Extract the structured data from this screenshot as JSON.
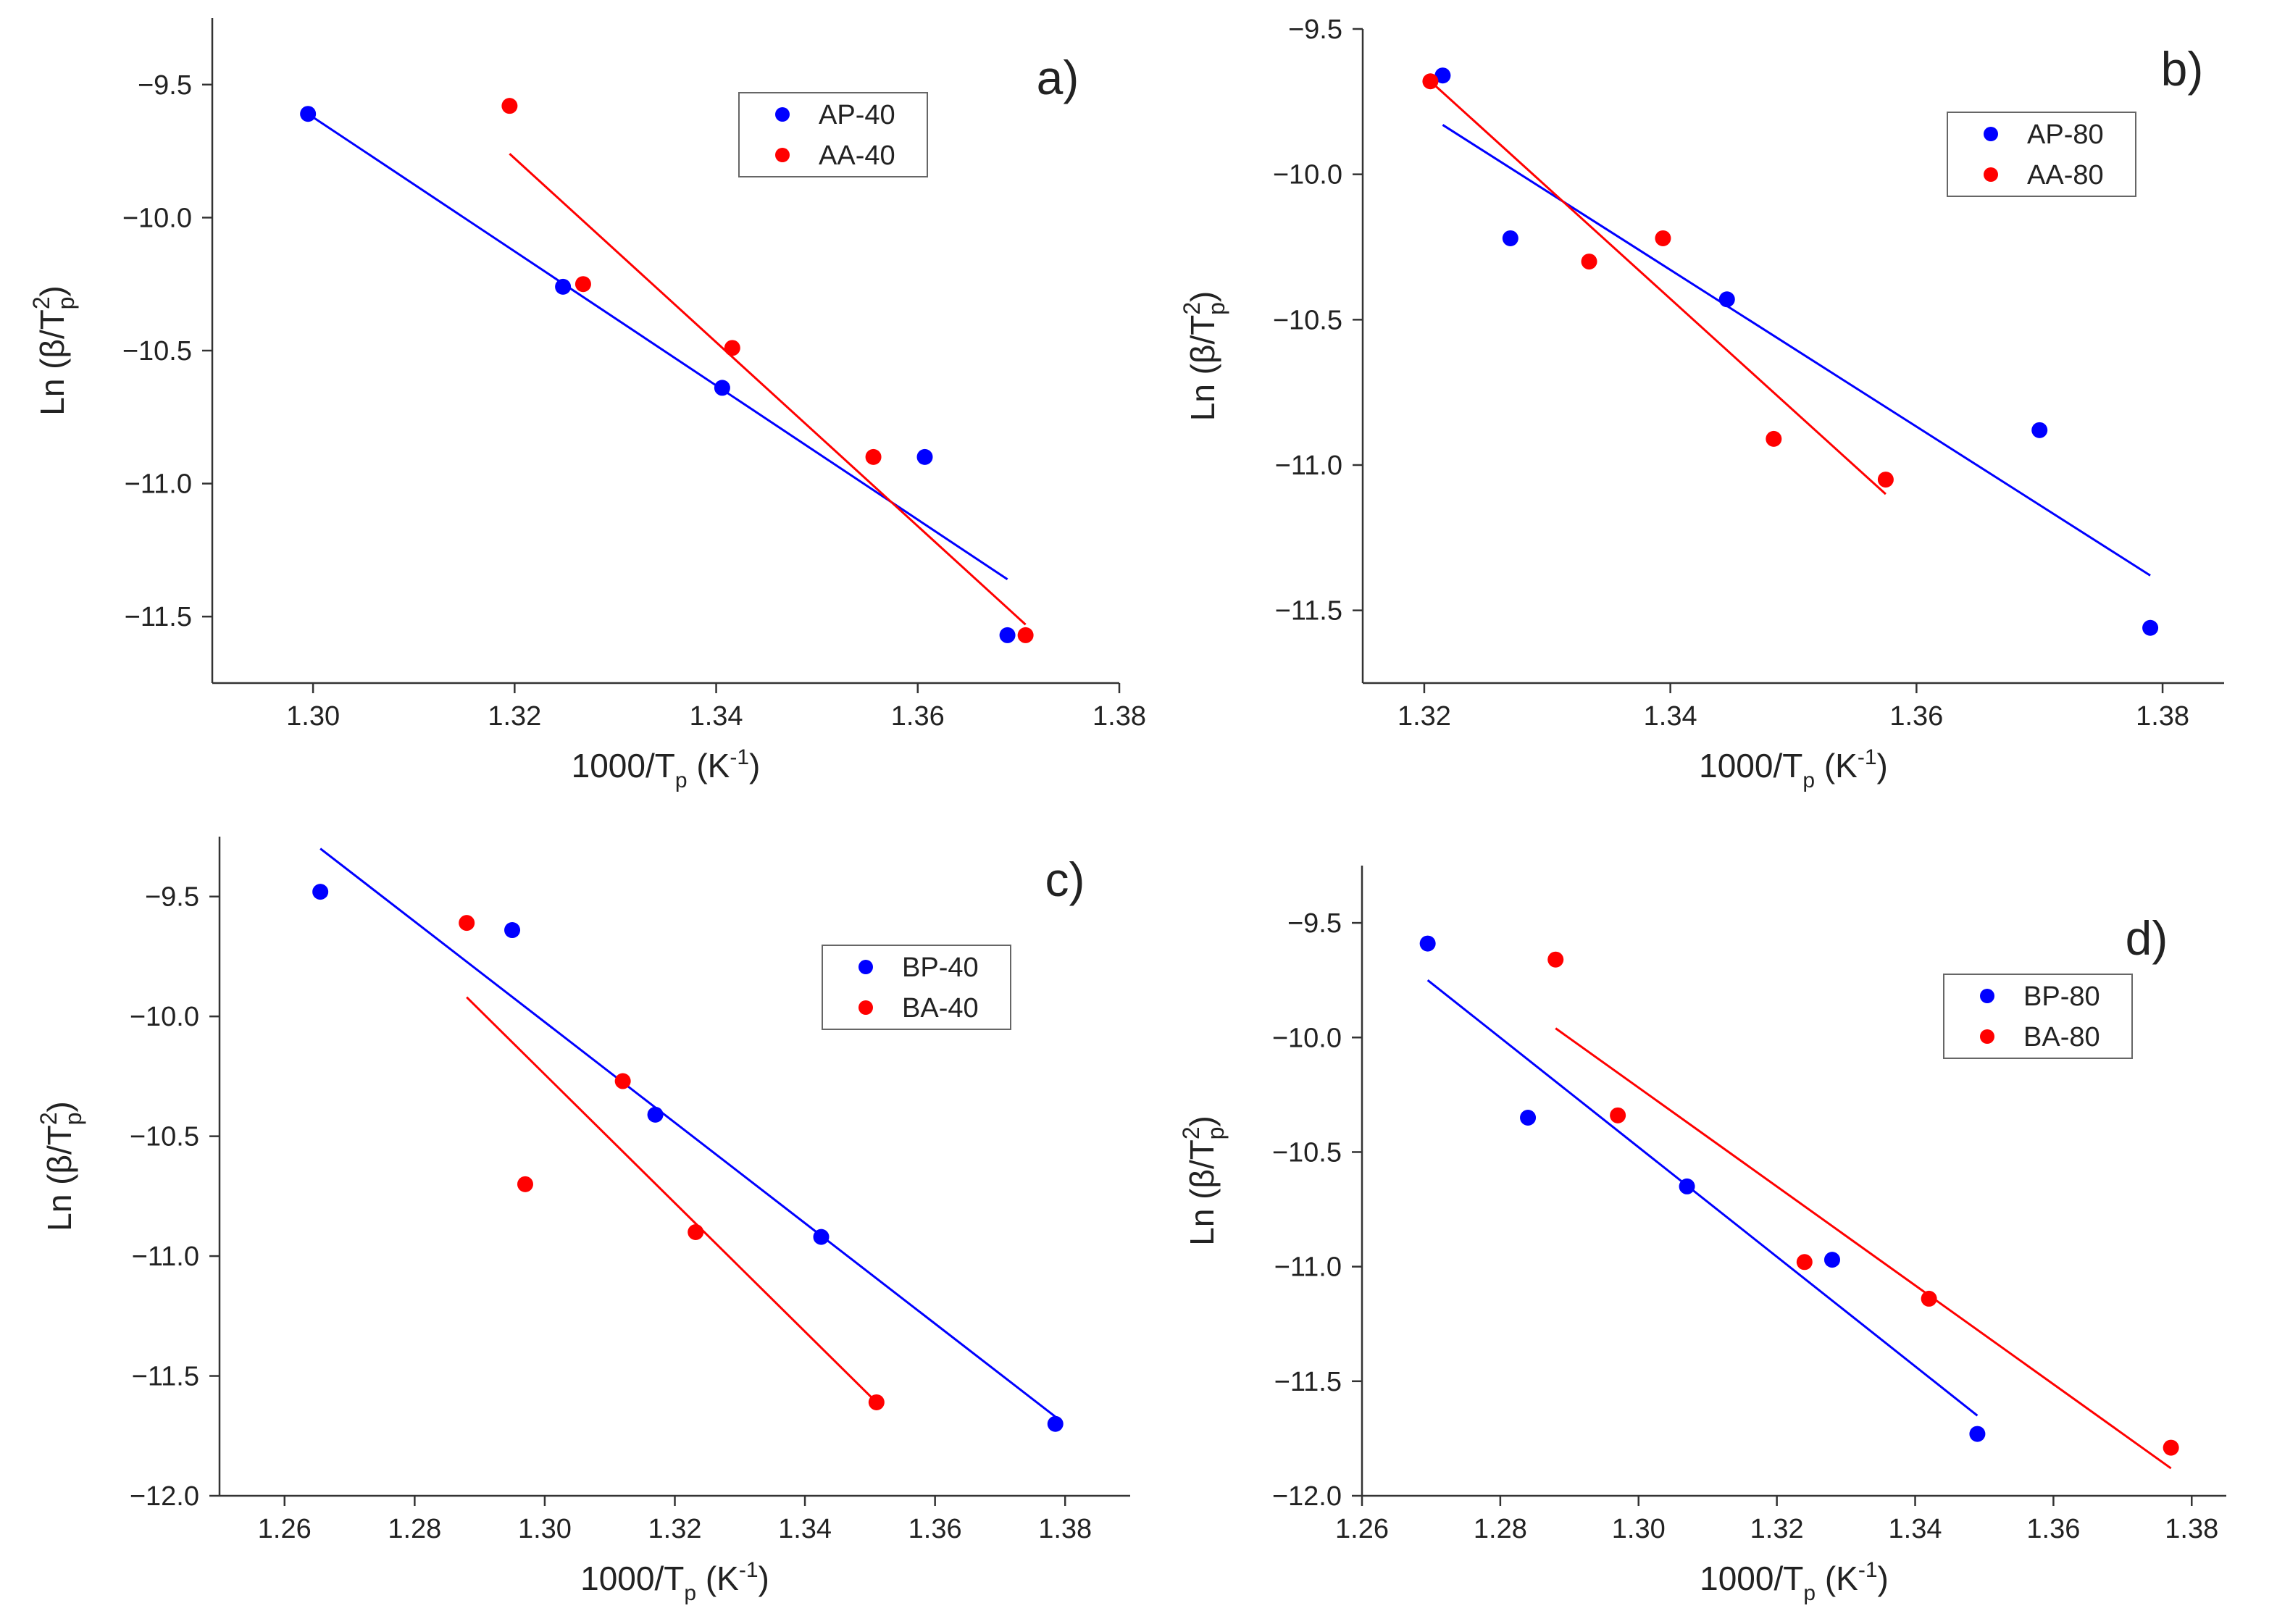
{
  "colors": {
    "blue": "#0000ff",
    "red": "#ff0000"
  },
  "chart_data": [
    {
      "type": "scatter",
      "panel_label": "a)",
      "xlabel_main": "1000/T",
      "xlabel_sub": "p",
      "xlabel_unit_pre": " (K",
      "xlabel_unit_sup": "-1",
      "xlabel_unit_post": ")",
      "ylabel_main": "Ln (β/T",
      "ylabel_sup": "2",
      "ylabel_sub": "p",
      "ylabel_close": ")",
      "xlim": [
        1.29,
        1.38
      ],
      "ylim": [
        -11.75,
        -9.25
      ],
      "xticks": [
        "1.30",
        "1.32",
        "1.34",
        "1.36",
        "1.38"
      ],
      "yticks": [
        "−9.5",
        "−10.0",
        "−10.5",
        "−11.0",
        "−11.5"
      ],
      "series": [
        {
          "name": "AP-40",
          "color": "blue",
          "x": [
            1.2995,
            1.3248,
            1.3406,
            1.3607,
            1.3689
          ],
          "y": [
            -9.61,
            -10.26,
            -10.64,
            -10.9,
            -11.57
          ],
          "fit": {
            "x": [
              1.2995,
              1.3689
            ],
            "y": [
              -9.61,
              -11.36
            ]
          }
        },
        {
          "name": "AA-40",
          "color": "red",
          "x": [
            1.3195,
            1.3268,
            1.3416,
            1.3556,
            1.3707
          ],
          "y": [
            -9.58,
            -10.25,
            -10.49,
            -10.9,
            -11.57
          ],
          "fit": {
            "x": [
              1.3195,
              1.3707
            ],
            "y": [
              -9.76,
              -11.53
            ]
          }
        }
      ]
    },
    {
      "type": "scatter",
      "panel_label": "b)",
      "xlabel_main": "1000/T",
      "xlabel_sub": "p",
      "xlabel_unit_pre": " (K",
      "xlabel_unit_sup": "-1",
      "xlabel_unit_post": ")",
      "ylabel_main": "Ln (β/T",
      "ylabel_sup": "2",
      "ylabel_sub": "p",
      "ylabel_close": ")",
      "xlim": [
        1.315,
        1.385
      ],
      "ylim": [
        -11.75,
        -9.5
      ],
      "xticks": [
        "1.32",
        "1.34",
        "1.36",
        "1.38"
      ],
      "yticks": [
        "−9.5",
        "−10.0",
        "−10.5",
        "−11.0",
        "−11.5"
      ],
      "series": [
        {
          "name": "AP-80",
          "color": "blue",
          "x": [
            1.3215,
            1.327,
            1.3446,
            1.37,
            1.379
          ],
          "y": [
            -9.66,
            -10.22,
            -10.43,
            -10.88,
            -11.56
          ],
          "fit": {
            "x": [
              1.3215,
              1.379
            ],
            "y": [
              -9.83,
              -11.38
            ]
          }
        },
        {
          "name": "AA-80",
          "color": "red",
          "x": [
            1.3205,
            1.3334,
            1.3394,
            1.3484,
            1.3575
          ],
          "y": [
            -9.68,
            -10.3,
            -10.22,
            -10.91,
            -11.05
          ],
          "fit": {
            "x": [
              1.3205,
              1.3575
            ],
            "y": [
              -9.68,
              -11.1
            ]
          }
        }
      ]
    },
    {
      "type": "scatter",
      "panel_label": "c)",
      "xlabel_main": "1000/T",
      "xlabel_sub": "p",
      "xlabel_unit_pre": " (K",
      "xlabel_unit_sup": "-1",
      "xlabel_unit_post": ")",
      "ylabel_main": "Ln (β/T",
      "ylabel_sup": "2",
      "ylabel_sub": "p",
      "ylabel_close": ")",
      "xlim": [
        1.25,
        1.39
      ],
      "ylim": [
        -12.0,
        -9.25
      ],
      "xticks": [
        "1.26",
        "1.28",
        "1.30",
        "1.32",
        "1.34",
        "1.36",
        "1.38"
      ],
      "yticks": [
        "−9.5",
        "−10.0",
        "−10.5",
        "−11.0",
        "−11.5",
        "−12.0"
      ],
      "series": [
        {
          "name": "BP-40",
          "color": "blue",
          "x": [
            1.2655,
            1.295,
            1.317,
            1.3425,
            1.3785
          ],
          "y": [
            -9.48,
            -9.64,
            -10.41,
            -10.92,
            -11.7
          ],
          "fit": {
            "x": [
              1.2655,
              1.3785
            ],
            "y": [
              -9.3,
              -11.67
            ]
          }
        },
        {
          "name": "BA-40",
          "color": "red",
          "x": [
            1.288,
            1.297,
            1.312,
            1.3232,
            1.351
          ],
          "y": [
            -9.61,
            -10.7,
            -10.27,
            -10.9,
            -11.61
          ],
          "fit": {
            "x": [
              1.288,
              1.351
            ],
            "y": [
              -9.92,
              -11.61
            ]
          }
        }
      ]
    },
    {
      "type": "scatter",
      "panel_label": "d)",
      "xlabel_main": "1000/T",
      "xlabel_sub": "p",
      "xlabel_unit_pre": " (K",
      "xlabel_unit_sup": "-1",
      "xlabel_unit_post": ")",
      "ylabel_main": "Ln (β/T",
      "ylabel_sup": "2",
      "ylabel_sub": "p",
      "ylabel_close": ")",
      "xlim": [
        1.26,
        1.385
      ],
      "ylim": [
        -12.0,
        -9.25
      ],
      "xticks": [
        "1.26",
        "1.28",
        "1.30",
        "1.32",
        "1.34",
        "1.36",
        "1.38"
      ],
      "yticks": [
        "−9.5",
        "−10.0",
        "−10.5",
        "−11.0",
        "−11.5",
        "−12.0"
      ],
      "series": [
        {
          "name": "BP-80",
          "color": "blue",
          "x": [
            1.2695,
            1.284,
            1.307,
            1.328,
            1.349
          ],
          "y": [
            -9.59,
            -10.35,
            -10.65,
            -10.97,
            -11.73
          ],
          "fit": {
            "x": [
              1.2695,
              1.349
            ],
            "y": [
              -9.75,
              -11.65
            ]
          }
        },
        {
          "name": "BA-80",
          "color": "red",
          "x": [
            1.288,
            1.297,
            1.324,
            1.342,
            1.377
          ],
          "y": [
            -9.66,
            -10.34,
            -10.98,
            -11.14,
            -11.79
          ],
          "fit": {
            "x": [
              1.288,
              1.377
            ],
            "y": [
              -9.96,
              -11.88
            ]
          }
        }
      ]
    }
  ]
}
